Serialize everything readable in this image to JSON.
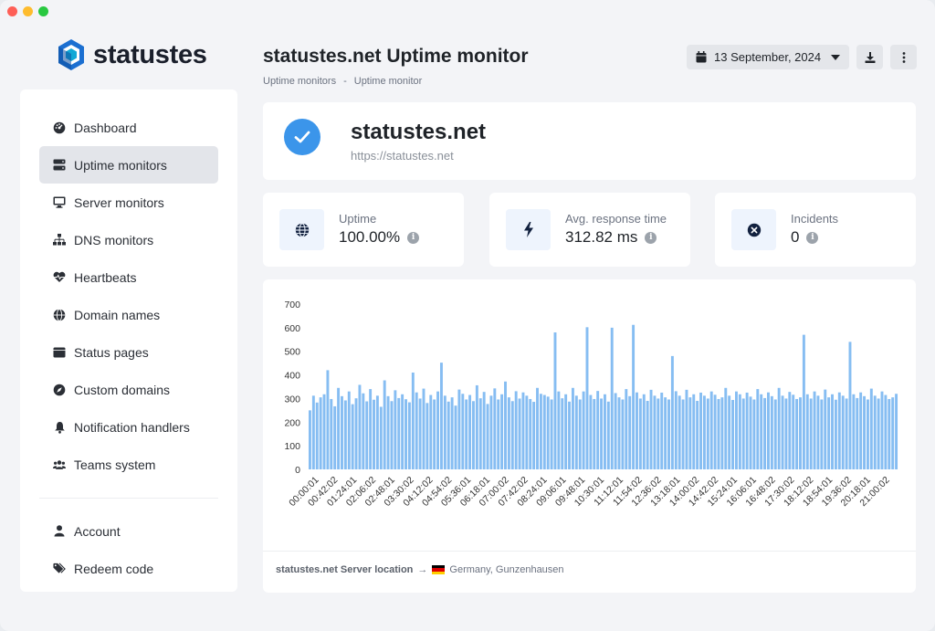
{
  "brand": {
    "name": "statustes"
  },
  "sidebar": {
    "items": [
      {
        "label": "Dashboard",
        "icon": "gauge-icon",
        "name": "sidebar-item-dashboard"
      },
      {
        "label": "Uptime monitors",
        "icon": "server-icon",
        "name": "sidebar-item-uptime-monitors",
        "active": true
      },
      {
        "label": "Server monitors",
        "icon": "desktop-icon",
        "name": "sidebar-item-server-monitors"
      },
      {
        "label": "DNS monitors",
        "icon": "network-icon",
        "name": "sidebar-item-dns-monitors"
      },
      {
        "label": "Heartbeats",
        "icon": "heart-pulse-icon",
        "name": "sidebar-item-heartbeats"
      },
      {
        "label": "Domain names",
        "icon": "globe-icon",
        "name": "sidebar-item-domain-names"
      },
      {
        "label": "Status pages",
        "icon": "window-icon",
        "name": "sidebar-item-status-pages"
      },
      {
        "label": "Custom domains",
        "icon": "compass-icon",
        "name": "sidebar-item-custom-domains"
      },
      {
        "label": "Notification handlers",
        "icon": "bell-icon",
        "name": "sidebar-item-notification-handlers"
      },
      {
        "label": "Teams system",
        "icon": "users-icon",
        "name": "sidebar-item-teams-system"
      }
    ],
    "bottom_items": [
      {
        "label": "Account",
        "icon": "user-icon",
        "name": "sidebar-item-account"
      },
      {
        "label": "Redeem code",
        "icon": "tags-icon",
        "name": "sidebar-item-redeem-code"
      }
    ]
  },
  "header": {
    "title": "statustes.net Uptime monitor",
    "breadcrumb": [
      "Uptime monitors",
      "-",
      "Uptime monitor"
    ],
    "date_label": "13 September, 2024"
  },
  "site": {
    "name": "statustes.net",
    "url": "https://statustes.net"
  },
  "stats": [
    {
      "label": "Uptime",
      "value": "100.00%",
      "icon": "globe-icon"
    },
    {
      "label": "Avg. response time",
      "value": "312.82 ms",
      "icon": "bolt-icon"
    },
    {
      "label": "Incidents",
      "value": "0",
      "icon": "x-circle-icon"
    }
  ],
  "footer": {
    "label": "statustes.net Server location",
    "location": "Germany, Gunzenhausen"
  },
  "colors": {
    "accent": "#3b95ea",
    "bar": "#86bdf2",
    "brand_dark": "#1a1f2b"
  },
  "chart_data": {
    "type": "bar",
    "title": "",
    "xlabel": "",
    "ylabel": "",
    "ylim": [
      0,
      700
    ],
    "yticks": [
      0,
      100,
      200,
      300,
      400,
      500,
      600,
      700
    ],
    "xtick_labels": [
      "00:00:01",
      "00:42:02",
      "01:24:01",
      "02:06:02",
      "02:48:01",
      "03:30:02",
      "04:12:02",
      "04:54:02",
      "05:36:01",
      "06:18:01",
      "07:00:02",
      "07:42:02",
      "08:24:01",
      "09:06:01",
      "09:48:01",
      "10:30:01",
      "11:12:01",
      "11:54:02",
      "12:36:02",
      "13:18:01",
      "14:00:02",
      "14:42:02",
      "15:24:01",
      "16:06:01",
      "16:48:02",
      "17:30:02",
      "18:12:02",
      "18:54:01",
      "19:36:02",
      "20:18:01",
      "21:00:02"
    ],
    "series": [
      {
        "values": [
          250,
          312,
          283,
          305,
          318,
          420,
          298,
          267,
          345,
          310,
          292,
          330,
          276,
          301,
          358,
          322,
          288,
          340,
          295,
          312,
          265,
          377,
          310,
          289,
          335,
          302,
          318,
          297,
          284,
          410,
          326,
          300,
          342,
          281,
          315,
          296,
          330,
          452,
          312,
          287,
          305,
          270,
          338,
          320,
          296,
          315,
          289,
          356,
          301,
          328,
          277,
          312,
          343,
          296,
          318,
          372,
          305,
          289,
          331,
          300,
          326,
          312,
          298,
          286,
          345,
          320,
          315,
          308,
          296,
          580,
          330,
          301,
          318,
          287,
          345,
          312,
          296,
          330,
          602,
          315,
          298,
          332,
          300,
          318,
          287,
          600,
          323,
          305,
          296,
          340,
          310,
          612,
          326,
          300,
          318,
          290,
          337,
          312,
          300,
          325,
          305,
          296,
          480,
          331,
          312,
          296,
          337,
          305,
          318,
          290,
          325,
          312,
          300,
          330,
          316,
          298,
          305,
          345,
          312,
          294,
          330,
          318,
          300,
          325,
          308,
          296,
          340,
          318,
          302,
          326,
          310,
          296,
          345,
          312,
          300,
          328,
          316,
          298,
          305,
          570,
          318,
          300,
          330,
          312,
          296,
          338,
          305,
          318,
          295,
          326,
          312,
          300,
          540,
          318,
          302,
          326,
          310,
          296,
          342,
          312,
          300,
          330,
          315,
          298,
          305,
          320
        ]
      }
    ]
  }
}
